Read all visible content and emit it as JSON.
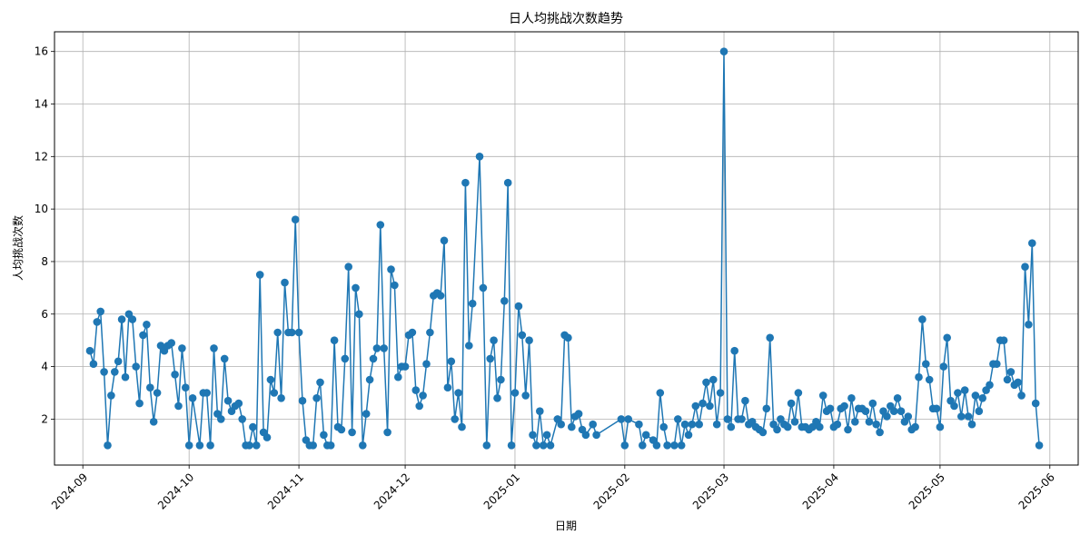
{
  "chart_data": {
    "type": "line",
    "title": "日人均挑战次数趋势",
    "xlabel": "日期",
    "ylabel": "人均挑战次数",
    "x_axis_type": "date",
    "xlim": [
      "2024-08-24",
      "2025-06-09"
    ],
    "ylim": [
      0.25,
      16.75
    ],
    "yticks": [
      2,
      4,
      6,
      8,
      10,
      12,
      14,
      16
    ],
    "xticks": [
      "2024-09-01",
      "2024-10-01",
      "2024-11-01",
      "2024-12-01",
      "2025-01-01",
      "2025-02-01",
      "2025-03-01",
      "2025-04-01",
      "2025-05-01",
      "2025-06-01"
    ],
    "xtick_labels": [
      "2024-09",
      "2024-10",
      "2024-11",
      "2024-12",
      "2025-01",
      "2025-02",
      "2025-03",
      "2025-04",
      "2025-05",
      "2025-06"
    ],
    "grid": true,
    "line_color": "#1f77b4",
    "marker": "circle",
    "series": [
      {
        "values": [
          [
            "2024-09-03",
            4.6
          ],
          [
            "2024-09-04",
            4.1
          ],
          [
            "2024-09-05",
            5.7
          ],
          [
            "2024-09-06",
            6.1
          ],
          [
            "2024-09-07",
            3.8
          ],
          [
            "2024-09-08",
            1.0
          ],
          [
            "2024-09-09",
            2.9
          ],
          [
            "2024-09-10",
            3.8
          ],
          [
            "2024-09-11",
            4.2
          ],
          [
            "2024-09-12",
            5.8
          ],
          [
            "2024-09-13",
            3.6
          ],
          [
            "2024-09-14",
            6.0
          ],
          [
            "2024-09-15",
            5.8
          ],
          [
            "2024-09-16",
            4.0
          ],
          [
            "2024-09-17",
            2.6
          ],
          [
            "2024-09-18",
            5.2
          ],
          [
            "2024-09-19",
            5.6
          ],
          [
            "2024-09-20",
            3.2
          ],
          [
            "2024-09-21",
            1.9
          ],
          [
            "2024-09-22",
            3.0
          ],
          [
            "2024-09-23",
            4.8
          ],
          [
            "2024-09-24",
            4.6
          ],
          [
            "2024-09-25",
            4.8
          ],
          [
            "2024-09-26",
            4.9
          ],
          [
            "2024-09-27",
            3.7
          ],
          [
            "2024-09-28",
            2.5
          ],
          [
            "2024-09-29",
            4.7
          ],
          [
            "2024-09-30",
            3.2
          ],
          [
            "2024-10-01",
            1.0
          ],
          [
            "2024-10-02",
            2.8
          ],
          [
            "2024-10-04",
            1.0
          ],
          [
            "2024-10-05",
            3.0
          ],
          [
            "2024-10-06",
            3.0
          ],
          [
            "2024-10-07",
            1.0
          ],
          [
            "2024-10-08",
            4.7
          ],
          [
            "2024-10-09",
            2.2
          ],
          [
            "2024-10-10",
            2.0
          ],
          [
            "2024-10-11",
            4.3
          ],
          [
            "2024-10-12",
            2.7
          ],
          [
            "2024-10-13",
            2.3
          ],
          [
            "2024-10-14",
            2.5
          ],
          [
            "2024-10-15",
            2.6
          ],
          [
            "2024-10-16",
            2.0
          ],
          [
            "2024-10-17",
            1.0
          ],
          [
            "2024-10-18",
            1.0
          ],
          [
            "2024-10-19",
            1.7
          ],
          [
            "2024-10-20",
            1.0
          ],
          [
            "2024-10-21",
            7.5
          ],
          [
            "2024-10-22",
            1.5
          ],
          [
            "2024-10-23",
            1.3
          ],
          [
            "2024-10-24",
            3.5
          ],
          [
            "2024-10-25",
            3.0
          ],
          [
            "2024-10-26",
            5.3
          ],
          [
            "2024-10-27",
            2.8
          ],
          [
            "2024-10-28",
            7.2
          ],
          [
            "2024-10-29",
            5.3
          ],
          [
            "2024-10-30",
            5.3
          ],
          [
            "2024-10-31",
            9.6
          ],
          [
            "2024-11-01",
            5.3
          ],
          [
            "2024-11-02",
            2.7
          ],
          [
            "2024-11-03",
            1.2
          ],
          [
            "2024-11-04",
            1.0
          ],
          [
            "2024-11-05",
            1.0
          ],
          [
            "2024-11-06",
            2.8
          ],
          [
            "2024-11-07",
            3.4
          ],
          [
            "2024-11-08",
            1.4
          ],
          [
            "2024-11-09",
            1.0
          ],
          [
            "2024-11-10",
            1.0
          ],
          [
            "2024-11-11",
            5.0
          ],
          [
            "2024-11-12",
            1.7
          ],
          [
            "2024-11-13",
            1.6
          ],
          [
            "2024-11-14",
            4.3
          ],
          [
            "2024-11-15",
            7.8
          ],
          [
            "2024-11-16",
            1.5
          ],
          [
            "2024-11-17",
            7.0
          ],
          [
            "2024-11-18",
            6.0
          ],
          [
            "2024-11-19",
            1.0
          ],
          [
            "2024-11-20",
            2.2
          ],
          [
            "2024-11-21",
            3.5
          ],
          [
            "2024-11-22",
            4.3
          ],
          [
            "2024-11-23",
            4.7
          ],
          [
            "2024-11-24",
            9.4
          ],
          [
            "2024-11-25",
            4.7
          ],
          [
            "2024-11-26",
            1.5
          ],
          [
            "2024-11-27",
            7.7
          ],
          [
            "2024-11-28",
            7.1
          ],
          [
            "2024-11-29",
            3.6
          ],
          [
            "2024-11-30",
            4.0
          ],
          [
            "2024-12-01",
            4.0
          ],
          [
            "2024-12-02",
            5.2
          ],
          [
            "2024-12-03",
            5.3
          ],
          [
            "2024-12-04",
            3.1
          ],
          [
            "2024-12-05",
            2.5
          ],
          [
            "2024-12-06",
            2.9
          ],
          [
            "2024-12-07",
            4.1
          ],
          [
            "2024-12-08",
            5.3
          ],
          [
            "2024-12-09",
            6.7
          ],
          [
            "2024-12-10",
            6.8
          ],
          [
            "2024-12-11",
            6.7
          ],
          [
            "2024-12-12",
            8.8
          ],
          [
            "2024-12-13",
            3.2
          ],
          [
            "2024-12-14",
            4.2
          ],
          [
            "2024-12-15",
            2.0
          ],
          [
            "2024-12-16",
            3.0
          ],
          [
            "2024-12-17",
            1.7
          ],
          [
            "2024-12-18",
            11.0
          ],
          [
            "2024-12-19",
            4.8
          ],
          [
            "2024-12-20",
            6.4
          ],
          [
            "2024-12-22",
            12.0
          ],
          [
            "2024-12-23",
            7.0
          ],
          [
            "2024-12-24",
            1.0
          ],
          [
            "2024-12-25",
            4.3
          ],
          [
            "2024-12-26",
            5.0
          ],
          [
            "2024-12-27",
            2.8
          ],
          [
            "2024-12-28",
            3.5
          ],
          [
            "2024-12-29",
            6.5
          ],
          [
            "2024-12-30",
            11.0
          ],
          [
            "2024-12-31",
            1.0
          ],
          [
            "2025-01-01",
            3.0
          ],
          [
            "2025-01-02",
            6.3
          ],
          [
            "2025-01-03",
            5.2
          ],
          [
            "2025-01-04",
            2.9
          ],
          [
            "2025-01-05",
            5.0
          ],
          [
            "2025-01-06",
            1.4
          ],
          [
            "2025-01-07",
            1.0
          ],
          [
            "2025-01-08",
            2.3
          ],
          [
            "2025-01-09",
            1.0
          ],
          [
            "2025-01-10",
            1.4
          ],
          [
            "2025-01-11",
            1.0
          ],
          [
            "2025-01-13",
            2.0
          ],
          [
            "2025-01-14",
            1.8
          ],
          [
            "2025-01-15",
            5.2
          ],
          [
            "2025-01-16",
            5.1
          ],
          [
            "2025-01-17",
            1.7
          ],
          [
            "2025-01-18",
            2.1
          ],
          [
            "2025-01-19",
            2.2
          ],
          [
            "2025-01-20",
            1.6
          ],
          [
            "2025-01-21",
            1.4
          ],
          [
            "2025-01-23",
            1.8
          ],
          [
            "2025-01-24",
            1.4
          ],
          [
            "2025-01-31",
            2.0
          ],
          [
            "2025-02-01",
            1.0
          ],
          [
            "2025-02-02",
            2.0
          ],
          [
            "2025-02-05",
            1.8
          ],
          [
            "2025-02-06",
            1.0
          ],
          [
            "2025-02-07",
            1.4
          ],
          [
            "2025-02-09",
            1.2
          ],
          [
            "2025-02-10",
            1.0
          ],
          [
            "2025-02-11",
            3.0
          ],
          [
            "2025-02-12",
            1.7
          ],
          [
            "2025-02-13",
            1.0
          ],
          [
            "2025-02-15",
            1.0
          ],
          [
            "2025-02-16",
            2.0
          ],
          [
            "2025-02-17",
            1.0
          ],
          [
            "2025-02-18",
            1.8
          ],
          [
            "2025-02-19",
            1.4
          ],
          [
            "2025-02-20",
            1.8
          ],
          [
            "2025-02-21",
            2.5
          ],
          [
            "2025-02-22",
            1.8
          ],
          [
            "2025-02-23",
            2.6
          ],
          [
            "2025-02-24",
            3.4
          ],
          [
            "2025-02-25",
            2.5
          ],
          [
            "2025-02-26",
            3.5
          ],
          [
            "2025-02-27",
            1.8
          ],
          [
            "2025-02-28",
            3.0
          ],
          [
            "2025-03-01",
            16.0
          ],
          [
            "2025-03-02",
            2.0
          ],
          [
            "2025-03-03",
            1.7
          ],
          [
            "2025-03-04",
            4.6
          ],
          [
            "2025-03-05",
            2.0
          ],
          [
            "2025-03-06",
            2.0
          ],
          [
            "2025-03-07",
            2.7
          ],
          [
            "2025-03-08",
            1.8
          ],
          [
            "2025-03-09",
            1.9
          ],
          [
            "2025-03-10",
            1.7
          ],
          [
            "2025-03-11",
            1.6
          ],
          [
            "2025-03-12",
            1.5
          ],
          [
            "2025-03-13",
            2.4
          ],
          [
            "2025-03-14",
            5.1
          ],
          [
            "2025-03-15",
            1.8
          ],
          [
            "2025-03-16",
            1.6
          ],
          [
            "2025-03-17",
            2.0
          ],
          [
            "2025-03-18",
            1.8
          ],
          [
            "2025-03-19",
            1.7
          ],
          [
            "2025-03-20",
            2.6
          ],
          [
            "2025-03-21",
            1.9
          ],
          [
            "2025-03-22",
            3.0
          ],
          [
            "2025-03-23",
            1.7
          ],
          [
            "2025-03-24",
            1.7
          ],
          [
            "2025-03-25",
            1.6
          ],
          [
            "2025-03-26",
            1.7
          ],
          [
            "2025-03-27",
            1.9
          ],
          [
            "2025-03-28",
            1.7
          ],
          [
            "2025-03-29",
            2.9
          ],
          [
            "2025-03-30",
            2.3
          ],
          [
            "2025-03-31",
            2.4
          ],
          [
            "2025-04-01",
            1.7
          ],
          [
            "2025-04-02",
            1.8
          ],
          [
            "2025-04-03",
            2.4
          ],
          [
            "2025-04-04",
            2.5
          ],
          [
            "2025-04-05",
            1.6
          ],
          [
            "2025-04-06",
            2.8
          ],
          [
            "2025-04-07",
            1.9
          ],
          [
            "2025-04-08",
            2.4
          ],
          [
            "2025-04-09",
            2.4
          ],
          [
            "2025-04-10",
            2.3
          ],
          [
            "2025-04-11",
            1.9
          ],
          [
            "2025-04-12",
            2.6
          ],
          [
            "2025-04-13",
            1.8
          ],
          [
            "2025-04-14",
            1.5
          ],
          [
            "2025-04-15",
            2.3
          ],
          [
            "2025-04-16",
            2.1
          ],
          [
            "2025-04-17",
            2.5
          ],
          [
            "2025-04-18",
            2.3
          ],
          [
            "2025-04-19",
            2.8
          ],
          [
            "2025-04-20",
            2.3
          ],
          [
            "2025-04-21",
            1.9
          ],
          [
            "2025-04-22",
            2.1
          ],
          [
            "2025-04-23",
            1.6
          ],
          [
            "2025-04-24",
            1.7
          ],
          [
            "2025-04-25",
            3.6
          ],
          [
            "2025-04-26",
            5.8
          ],
          [
            "2025-04-27",
            4.1
          ],
          [
            "2025-04-28",
            3.5
          ],
          [
            "2025-04-29",
            2.4
          ],
          [
            "2025-04-30",
            2.4
          ],
          [
            "2025-05-01",
            1.7
          ],
          [
            "2025-05-02",
            4.0
          ],
          [
            "2025-05-03",
            5.1
          ],
          [
            "2025-05-04",
            2.7
          ],
          [
            "2025-05-05",
            2.5
          ],
          [
            "2025-05-06",
            3.0
          ],
          [
            "2025-05-07",
            2.1
          ],
          [
            "2025-05-08",
            3.1
          ],
          [
            "2025-05-09",
            2.1
          ],
          [
            "2025-05-10",
            1.8
          ],
          [
            "2025-05-11",
            2.9
          ],
          [
            "2025-05-12",
            2.3
          ],
          [
            "2025-05-13",
            2.8
          ],
          [
            "2025-05-14",
            3.1
          ],
          [
            "2025-05-15",
            3.3
          ],
          [
            "2025-05-16",
            4.1
          ],
          [
            "2025-05-17",
            4.1
          ],
          [
            "2025-05-18",
            5.0
          ],
          [
            "2025-05-19",
            5.0
          ],
          [
            "2025-05-20",
            3.5
          ],
          [
            "2025-05-21",
            3.8
          ],
          [
            "2025-05-22",
            3.3
          ],
          [
            "2025-05-23",
            3.4
          ],
          [
            "2025-05-24",
            2.9
          ],
          [
            "2025-05-25",
            7.8
          ],
          [
            "2025-05-26",
            5.6
          ],
          [
            "2025-05-27",
            8.7
          ],
          [
            "2025-05-28",
            2.6
          ],
          [
            "2025-05-29",
            1.0
          ]
        ]
      }
    ]
  }
}
